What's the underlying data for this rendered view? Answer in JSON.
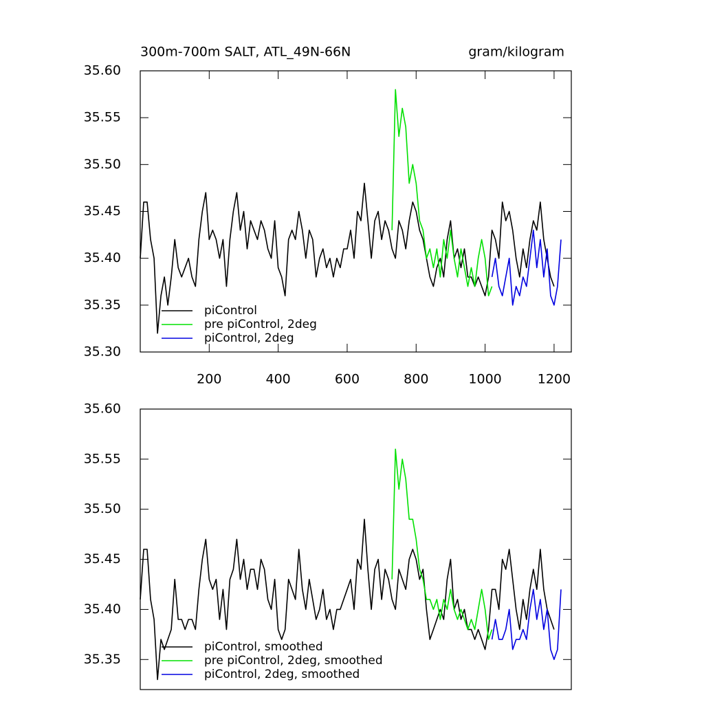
{
  "chart_data": [
    {
      "type": "line",
      "title": "300m-700m SALT, ATL_49N-66N",
      "units": "gram/kilogram",
      "xlim": [
        0,
        1250
      ],
      "xticks": [
        200,
        400,
        600,
        800,
        1000,
        1200
      ],
      "ylim": [
        35.3,
        35.6
      ],
      "yticks": [
        {
          "value": 35.3,
          "label": "35.30"
        },
        35.35,
        {
          "value": 35.4,
          "label": "35.40"
        },
        35.45,
        {
          "value": 35.5,
          "label": "35.50"
        },
        35.55,
        {
          "value": 35.6,
          "label": "35.60"
        }
      ],
      "series": [
        {
          "name": "piControl",
          "color": "#000000",
          "x": [
            0,
            10,
            20,
            30,
            40,
            50,
            60,
            70,
            80,
            90,
            100,
            110,
            120,
            130,
            140,
            150,
            160,
            170,
            180,
            190,
            200,
            210,
            220,
            230,
            240,
            250,
            260,
            270,
            280,
            290,
            300,
            310,
            320,
            330,
            340,
            350,
            360,
            370,
            380,
            390,
            400,
            410,
            420,
            430,
            440,
            450,
            460,
            470,
            480,
            490,
            500,
            510,
            520,
            530,
            540,
            550,
            560,
            570,
            580,
            590,
            600,
            610,
            620,
            630,
            640,
            650,
            660,
            670,
            680,
            690,
            700,
            710,
            720,
            730,
            740,
            750,
            760,
            770,
            780,
            790,
            800,
            810,
            820,
            830,
            840,
            850,
            860,
            870,
            880,
            890,
            900,
            910,
            920,
            930,
            940,
            950,
            960,
            970,
            980,
            990,
            1000,
            1010,
            1020,
            1030,
            1040,
            1050,
            1060,
            1070,
            1080,
            1090,
            1100,
            1110,
            1120,
            1130,
            1140,
            1150,
            1160,
            1170,
            1180,
            1190,
            1200
          ],
          "values": [
            35.4,
            35.46,
            35.46,
            35.42,
            35.4,
            35.32,
            35.36,
            35.38,
            35.35,
            35.38,
            35.42,
            35.39,
            35.38,
            35.39,
            35.4,
            35.38,
            35.37,
            35.42,
            35.45,
            35.47,
            35.42,
            35.43,
            35.42,
            35.4,
            35.42,
            35.37,
            35.42,
            35.45,
            35.47,
            35.43,
            35.45,
            35.41,
            35.44,
            35.43,
            35.42,
            35.44,
            35.43,
            35.41,
            35.4,
            35.44,
            35.39,
            35.38,
            35.36,
            35.42,
            35.43,
            35.42,
            35.45,
            35.43,
            35.4,
            35.43,
            35.42,
            35.38,
            35.4,
            35.41,
            35.39,
            35.4,
            35.38,
            35.4,
            35.39,
            35.41,
            35.41,
            35.43,
            35.4,
            35.45,
            35.44,
            35.48,
            35.44,
            35.4,
            35.44,
            35.45,
            35.42,
            35.44,
            35.43,
            35.41,
            35.4,
            35.44,
            35.43,
            35.41,
            35.44,
            35.46,
            35.45,
            35.43,
            35.42,
            35.4,
            35.38,
            35.37,
            35.39,
            35.4,
            35.38,
            35.42,
            35.44,
            35.4,
            35.41,
            35.39,
            35.41,
            35.38,
            35.38,
            35.37,
            35.38,
            35.37,
            35.36,
            35.38,
            35.43,
            35.42,
            35.4,
            35.46,
            35.44,
            35.45,
            35.43,
            35.4,
            35.38,
            35.41,
            35.39,
            35.42,
            35.44,
            35.43,
            35.46,
            35.42,
            35.4,
            35.38,
            35.37
          ]
        },
        {
          "name": "pre piControl, 2deg",
          "color": "#00e000",
          "x": [
            730,
            740,
            750,
            760,
            770,
            780,
            790,
            800,
            810,
            820,
            830,
            840,
            850,
            860,
            870,
            880,
            890,
            900,
            910,
            920,
            930,
            940,
            950,
            960,
            970,
            980,
            990,
            1000,
            1010,
            1020
          ],
          "values": [
            35.43,
            35.58,
            35.53,
            35.56,
            35.54,
            35.48,
            35.5,
            35.48,
            35.44,
            35.43,
            35.4,
            35.41,
            35.39,
            35.41,
            35.38,
            35.42,
            35.4,
            35.43,
            35.4,
            35.38,
            35.41,
            35.39,
            35.37,
            35.39,
            35.37,
            35.4,
            35.42,
            35.4,
            35.36,
            35.37
          ]
        },
        {
          "name": "piControl, 2deg",
          "color": "#0000e0",
          "x": [
            1020,
            1030,
            1040,
            1050,
            1060,
            1070,
            1080,
            1090,
            1100,
            1110,
            1120,
            1130,
            1140,
            1150,
            1160,
            1170,
            1180,
            1190,
            1200,
            1210,
            1220
          ],
          "values": [
            35.38,
            35.4,
            35.37,
            35.36,
            35.38,
            35.4,
            35.35,
            35.37,
            35.36,
            35.38,
            35.37,
            35.4,
            35.43,
            35.39,
            35.42,
            35.38,
            35.41,
            35.36,
            35.35,
            35.37,
            35.42
          ]
        }
      ]
    },
    {
      "type": "line",
      "xlim": [
        0,
        1250
      ],
      "ylim": [
        35.32,
        35.6
      ],
      "yticks": [
        35.35,
        {
          "value": 35.4,
          "label": "35.40"
        },
        35.45,
        {
          "value": 35.5,
          "label": "35.50"
        },
        35.55,
        {
          "value": 35.6,
          "label": "35.60"
        }
      ],
      "series": [
        {
          "name": "piControl, smoothed",
          "color": "#000000",
          "x": [
            0,
            10,
            20,
            30,
            40,
            50,
            60,
            70,
            80,
            90,
            100,
            110,
            120,
            130,
            140,
            150,
            160,
            170,
            180,
            190,
            200,
            210,
            220,
            230,
            240,
            250,
            260,
            270,
            280,
            290,
            300,
            310,
            320,
            330,
            340,
            350,
            360,
            370,
            380,
            390,
            400,
            410,
            420,
            430,
            440,
            450,
            460,
            470,
            480,
            490,
            500,
            510,
            520,
            530,
            540,
            550,
            560,
            570,
            580,
            590,
            600,
            610,
            620,
            630,
            640,
            650,
            660,
            670,
            680,
            690,
            700,
            710,
            720,
            730,
            740,
            750,
            760,
            770,
            780,
            790,
            800,
            810,
            820,
            830,
            840,
            850,
            860,
            870,
            880,
            890,
            900,
            910,
            920,
            930,
            940,
            950,
            960,
            970,
            980,
            990,
            1000,
            1010,
            1020,
            1030,
            1040,
            1050,
            1060,
            1070,
            1080,
            1090,
            1100,
            1110,
            1120,
            1130,
            1140,
            1150,
            1160,
            1170,
            1180,
            1190,
            1200
          ],
          "values": [
            35.41,
            35.46,
            35.46,
            35.41,
            35.39,
            35.33,
            35.37,
            35.36,
            35.37,
            35.38,
            35.43,
            35.39,
            35.39,
            35.38,
            35.39,
            35.39,
            35.38,
            35.42,
            35.45,
            35.47,
            35.43,
            35.42,
            35.43,
            35.39,
            35.42,
            35.38,
            35.43,
            35.44,
            35.47,
            35.43,
            35.45,
            35.42,
            35.44,
            35.44,
            35.42,
            35.45,
            35.44,
            35.41,
            35.4,
            35.43,
            35.38,
            35.37,
            35.38,
            35.43,
            35.42,
            35.41,
            35.46,
            35.42,
            35.4,
            35.43,
            35.41,
            35.39,
            35.4,
            35.42,
            35.39,
            35.4,
            35.38,
            35.4,
            35.4,
            35.41,
            35.42,
            35.43,
            35.4,
            35.45,
            35.44,
            35.49,
            35.44,
            35.4,
            35.44,
            35.45,
            35.41,
            35.44,
            35.43,
            35.41,
            35.4,
            35.44,
            35.43,
            35.42,
            35.45,
            35.46,
            35.45,
            35.43,
            35.44,
            35.4,
            35.37,
            35.38,
            35.39,
            35.4,
            35.39,
            35.43,
            35.45,
            35.4,
            35.41,
            35.39,
            35.4,
            35.38,
            35.38,
            35.37,
            35.38,
            35.37,
            35.36,
            35.38,
            35.42,
            35.42,
            35.4,
            35.45,
            35.44,
            35.46,
            35.43,
            35.4,
            35.38,
            35.41,
            35.39,
            35.42,
            35.44,
            35.42,
            35.46,
            35.42,
            35.4,
            35.39,
            35.38
          ]
        },
        {
          "name": "pre piControl, 2deg, smoothed",
          "color": "#00e000",
          "x": [
            730,
            740,
            750,
            760,
            770,
            780,
            790,
            800,
            810,
            820,
            830,
            840,
            850,
            860,
            870,
            880,
            890,
            900,
            910,
            920,
            930,
            940,
            950,
            960,
            970,
            980,
            990,
            1000,
            1010,
            1020
          ],
          "values": [
            35.43,
            35.56,
            35.52,
            35.55,
            35.53,
            35.49,
            35.49,
            35.47,
            35.44,
            35.43,
            35.41,
            35.41,
            35.4,
            35.41,
            35.39,
            35.41,
            35.4,
            35.42,
            35.4,
            35.39,
            35.4,
            35.39,
            35.38,
            35.39,
            35.38,
            35.4,
            35.42,
            35.4,
            35.37,
            35.38
          ]
        },
        {
          "name": "piControl, 2deg, smoothed",
          "color": "#0000e0",
          "x": [
            1020,
            1030,
            1040,
            1050,
            1060,
            1070,
            1080,
            1090,
            1100,
            1110,
            1120,
            1130,
            1140,
            1150,
            1160,
            1170,
            1180,
            1190,
            1200,
            1210,
            1220
          ],
          "values": [
            35.37,
            35.39,
            35.37,
            35.37,
            35.38,
            35.4,
            35.36,
            35.37,
            35.37,
            35.38,
            35.37,
            35.4,
            35.42,
            35.39,
            35.41,
            35.38,
            35.4,
            35.36,
            35.35,
            35.36,
            35.42
          ]
        }
      ]
    }
  ]
}
